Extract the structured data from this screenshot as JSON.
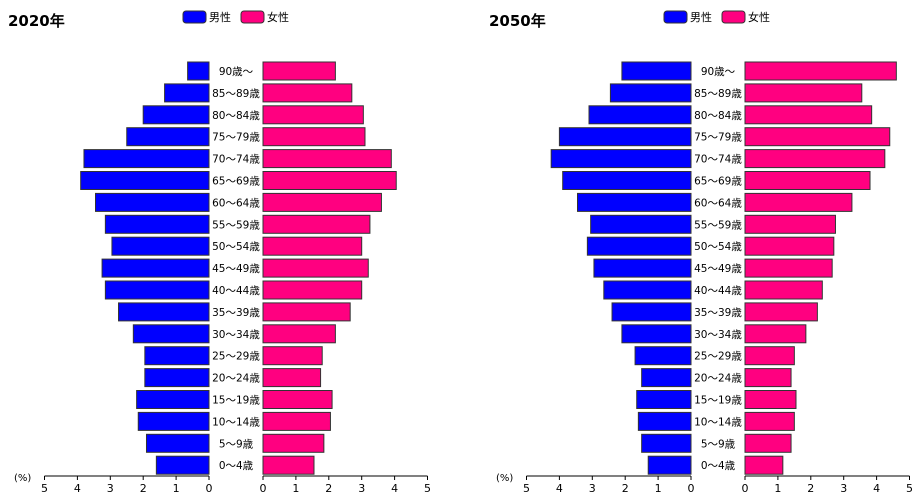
{
  "colors": {
    "male": "#0000ff",
    "female": "#ff0080",
    "stroke": "#333333"
  },
  "chart_data": [
    {
      "type": "bar",
      "title": "2020年",
      "legend": {
        "position": "top",
        "male": "男性",
        "female": "女性"
      },
      "unit_label": "(%)",
      "xlim": [
        0,
        5
      ],
      "ticks": [
        5,
        4,
        3,
        2,
        1,
        0
      ],
      "categories": [
        "90歳～",
        "85～89歳",
        "80～84歳",
        "75～79歳",
        "70～74歳",
        "65～69歳",
        "60～64歳",
        "55～59歳",
        "50～54歳",
        "45～49歳",
        "40～44歳",
        "35～39歳",
        "30～34歳",
        "25～29歳",
        "20～24歳",
        "15～19歳",
        "10～14歳",
        "5～9歳",
        "0～4歳"
      ],
      "series": [
        {
          "name": "男性",
          "values": [
            0.65,
            1.35,
            2.0,
            2.5,
            3.8,
            3.9,
            3.45,
            3.15,
            2.95,
            3.25,
            3.15,
            2.75,
            2.3,
            1.95,
            1.95,
            2.2,
            2.15,
            1.9,
            1.6
          ]
        },
        {
          "name": "女性",
          "values": [
            2.2,
            2.7,
            3.05,
            3.1,
            3.9,
            4.05,
            3.6,
            3.25,
            3.0,
            3.2,
            3.0,
            2.65,
            2.2,
            1.8,
            1.75,
            2.1,
            2.05,
            1.85,
            1.55
          ]
        }
      ]
    },
    {
      "type": "bar",
      "title": "2050年",
      "legend": {
        "position": "top",
        "male": "男性",
        "female": "女性"
      },
      "unit_label": "(%)",
      "xlim": [
        0,
        5
      ],
      "ticks": [
        5,
        4,
        3,
        2,
        1,
        0
      ],
      "categories": [
        "90歳～",
        "85～89歳",
        "80～84歳",
        "75～79歳",
        "70～74歳",
        "65～69歳",
        "60～64歳",
        "55～59歳",
        "50～54歳",
        "45～49歳",
        "40～44歳",
        "35～39歳",
        "30～34歳",
        "25～29歳",
        "20～24歳",
        "15～19歳",
        "10～14歳",
        "5～9歳",
        "0～4歳"
      ],
      "series": [
        {
          "name": "男性",
          "values": [
            2.1,
            2.45,
            3.1,
            4.0,
            4.25,
            3.9,
            3.45,
            3.05,
            3.15,
            2.95,
            2.65,
            2.4,
            2.1,
            1.7,
            1.5,
            1.65,
            1.6,
            1.5,
            1.3
          ]
        },
        {
          "name": "女性",
          "values": [
            4.6,
            3.55,
            3.85,
            4.4,
            4.25,
            3.8,
            3.25,
            2.75,
            2.7,
            2.65,
            2.35,
            2.2,
            1.85,
            1.5,
            1.4,
            1.55,
            1.5,
            1.4,
            1.15
          ]
        }
      ]
    }
  ]
}
